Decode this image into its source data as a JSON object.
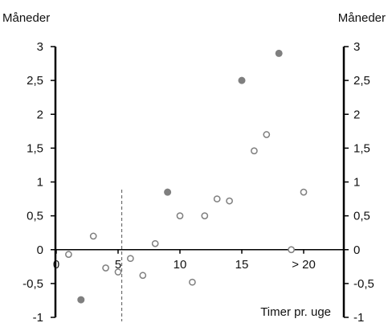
{
  "chart_data": {
    "type": "scatter",
    "title": "",
    "ylabel_left": "Måneder",
    "ylabel_right": "Måneder",
    "xlabel": "Timer pr. uge",
    "ylim": [
      -1,
      3
    ],
    "y_ticks": [
      "-1",
      "-0,5",
      "0",
      "0,5",
      "1",
      "1,5",
      "2",
      "2,5",
      "3"
    ],
    "y_tick_values": [
      -1,
      -0.5,
      0,
      0.5,
      1,
      1.5,
      2,
      2.5,
      3
    ],
    "x_ticks": [
      "0",
      "5",
      "10",
      "15",
      "> 20"
    ],
    "x_tick_values": [
      0,
      5,
      10,
      15,
      20
    ],
    "xlim": [
      0,
      23
    ],
    "reference_line_x": 5.3,
    "grid": false,
    "legend": "none",
    "colors": {
      "filled": "#7f7f7f",
      "open": "#7f7f7f",
      "axis": "#000000",
      "reference_line": "#555555"
    },
    "series": [
      {
        "style": "open",
        "points": [
          {
            "x": 1,
            "y": -0.07
          },
          {
            "x": 3,
            "y": 0.2
          },
          {
            "x": 4,
            "y": -0.27
          },
          {
            "x": 5,
            "y": -0.33
          },
          {
            "x": 6,
            "y": -0.13
          },
          {
            "x": 7,
            "y": -0.38
          },
          {
            "x": 8,
            "y": 0.09
          },
          {
            "x": 10,
            "y": 0.5
          },
          {
            "x": 11,
            "y": -0.48
          },
          {
            "x": 12,
            "y": 0.5
          },
          {
            "x": 13,
            "y": 0.75
          },
          {
            "x": 14,
            "y": 0.72
          },
          {
            "x": 16,
            "y": 1.46
          },
          {
            "x": 17,
            "y": 1.7
          },
          {
            "x": 19,
            "y": 0.0
          },
          {
            "x": 20,
            "y": 0.85
          }
        ]
      },
      {
        "style": "filled",
        "points": [
          {
            "x": 2,
            "y": -0.74
          },
          {
            "x": 9,
            "y": 0.85
          },
          {
            "x": 15,
            "y": 2.5
          },
          {
            "x": 18,
            "y": 2.9
          }
        ]
      }
    ]
  }
}
